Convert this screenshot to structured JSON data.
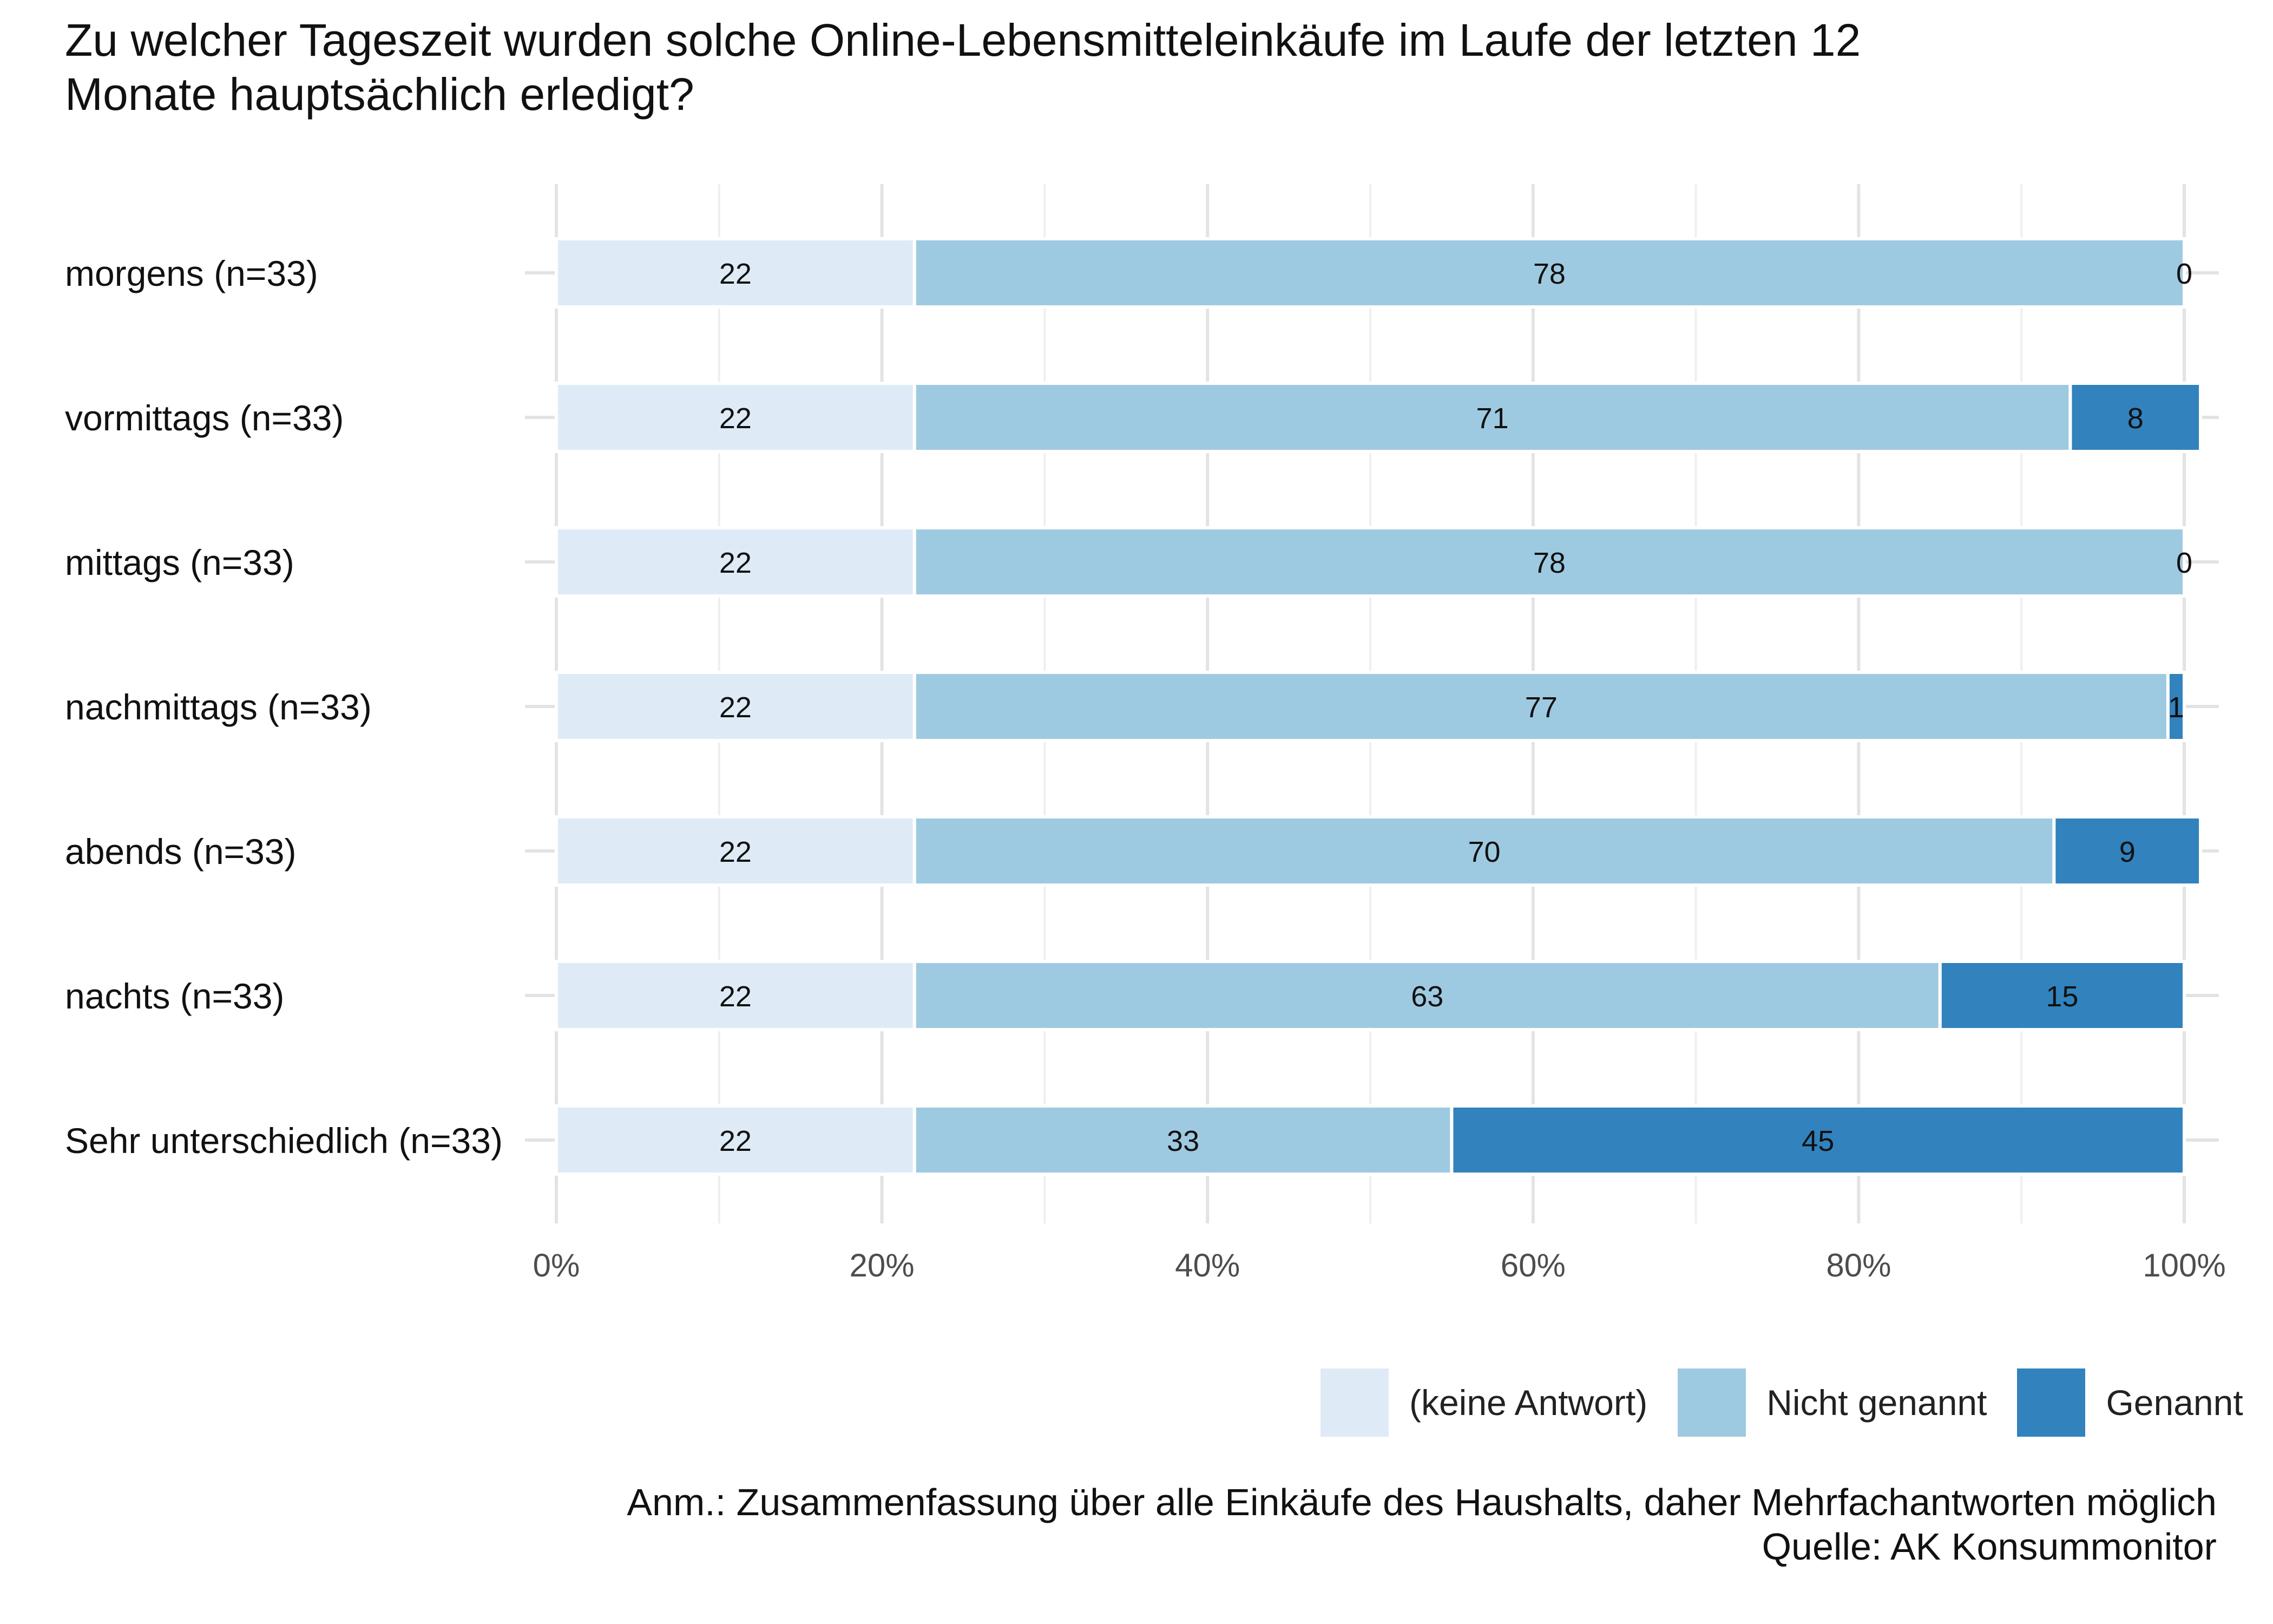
{
  "title_lines": [
    "Zu welcher Tageszeit wurden solche Online-Lebensmitteleinkäufe im Laufe der letzten 12",
    "Monate hauptsächlich erledigt?"
  ],
  "chart_data": {
    "type": "bar",
    "orientation": "horizontal",
    "stacked": true,
    "title": "Zu welcher Tageszeit wurden solche Online-Lebensmitteleinkäufe im Laufe der letzten 12 Monate hauptsächlich erledigt?",
    "categories": [
      "morgens (n=33)",
      "vormittags (n=33)",
      "mittags (n=33)",
      "nachmittags (n=33)",
      "abends (n=33)",
      "nachts (n=33)",
      "Sehr unterschiedlich (n=33)"
    ],
    "series": [
      {
        "name": "(keine Antwort)",
        "color": "#deebf7",
        "values": [
          22,
          22,
          22,
          22,
          22,
          22,
          22
        ]
      },
      {
        "name": "Nicht genannt",
        "color": "#9ecae1",
        "values": [
          78,
          71,
          78,
          77,
          70,
          63,
          33
        ]
      },
      {
        "name": "Genannt",
        "color": "#3182bd",
        "values": [
          0,
          8,
          0,
          1,
          9,
          15,
          45
        ]
      }
    ],
    "xlim": [
      0,
      100
    ],
    "xticks": [
      "0%",
      "20%",
      "40%",
      "60%",
      "80%",
      "100%"
    ],
    "grid": true,
    "legend_position": "bottom-right",
    "xlabel": "",
    "ylabel": ""
  },
  "legend": {
    "items": [
      {
        "label": "(keine Antwort)",
        "color": "#deebf7"
      },
      {
        "label": "Nicht genannt",
        "color": "#9ecae1"
      },
      {
        "label": "Genannt",
        "color": "#3182bd"
      }
    ]
  },
  "caption": {
    "note": "Anm.: Zusammenfassung über alle Einkäufe des Haushalts, daher Mehrfachantworten möglich",
    "source": "Quelle: AK Konsummonitor"
  }
}
